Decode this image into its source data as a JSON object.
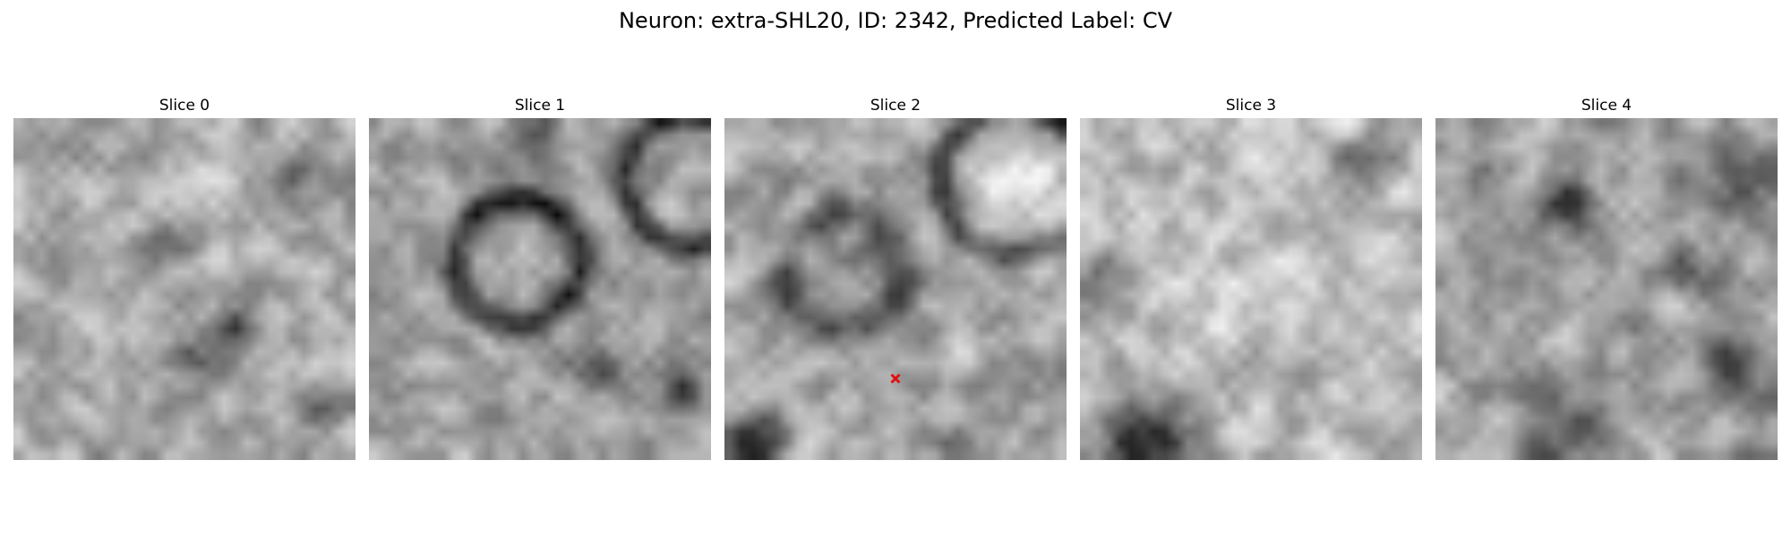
{
  "figure": {
    "title": "Neuron: extra-SHL20, ID: 2342, Predicted Label: CV"
  },
  "slices": [
    {
      "label": "Slice 0"
    },
    {
      "label": "Slice 1"
    },
    {
      "label": "Slice 2"
    },
    {
      "label": "Slice 3"
    },
    {
      "label": "Slice 4"
    }
  ],
  "marker": {
    "slice_index": 2,
    "color": "#e01010",
    "icon": "x-marker-icon"
  },
  "colormap": "gray"
}
